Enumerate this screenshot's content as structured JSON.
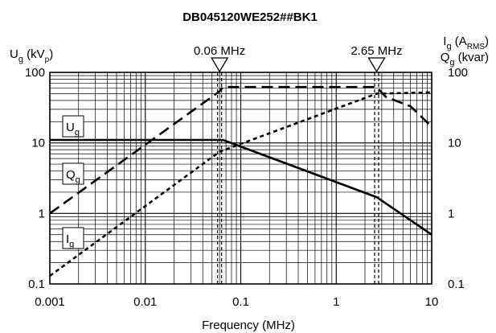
{
  "chart_data": {
    "type": "line",
    "title": "DB045120WE252##BK1",
    "x_scale": "log",
    "y_scale": "log",
    "xlabel": "Frequency (MHz)",
    "xlim": [
      0.001,
      10
    ],
    "ylim": [
      0.1,
      100
    ],
    "x_ticks": [
      {
        "value": 0.001,
        "label": "0.001"
      },
      {
        "value": 0.01,
        "label": "0.01"
      },
      {
        "value": 0.1,
        "label": "0.1"
      },
      {
        "value": 1,
        "label": "1"
      },
      {
        "value": 10,
        "label": "10"
      }
    ],
    "y_ticks": [
      {
        "value": 0.1,
        "label": "0.1"
      },
      {
        "value": 1,
        "label": "1"
      },
      {
        "value": 10,
        "label": "10"
      },
      {
        "value": 100,
        "label": "100"
      }
    ],
    "ylabel_left": {
      "main": "U",
      "sub": "g",
      "rest": " (kV",
      "sub2": "p",
      "end": ")"
    },
    "ylabel_right_1": {
      "main": "I",
      "sub": "g",
      "rest": "  (A",
      "sub2": "RMS",
      "end": ")"
    },
    "ylabel_right_2": {
      "main": "Q",
      "sub": "g",
      "rest": " (kvar)"
    },
    "grid": true,
    "markers": [
      {
        "x": 0.06,
        "label": "0.06 MHz"
      },
      {
        "x": 2.65,
        "label": "2.65 MHz"
      }
    ],
    "series": [
      {
        "name": "Ug",
        "label_main": "U",
        "label_sub": "g",
        "style": "solid",
        "x": [
          0.001,
          0.065,
          2.65,
          10
        ],
        "y": [
          11,
          11,
          1.7,
          0.5
        ]
      },
      {
        "name": "Qg",
        "label_main": "Q",
        "label_sub": "g",
        "style": "longdash",
        "x": [
          0.001,
          0.06,
          0.065,
          2.65,
          3.3,
          6.0,
          10
        ],
        "y": [
          1,
          54,
          62,
          62,
          45,
          33,
          17
        ]
      },
      {
        "name": "Ig",
        "label_main": "I",
        "label_sub": "g",
        "style": "shortdash",
        "x": [
          0.001,
          0.06,
          2.65,
          10
        ],
        "y": [
          0.13,
          7.5,
          50,
          52
        ]
      }
    ]
  }
}
